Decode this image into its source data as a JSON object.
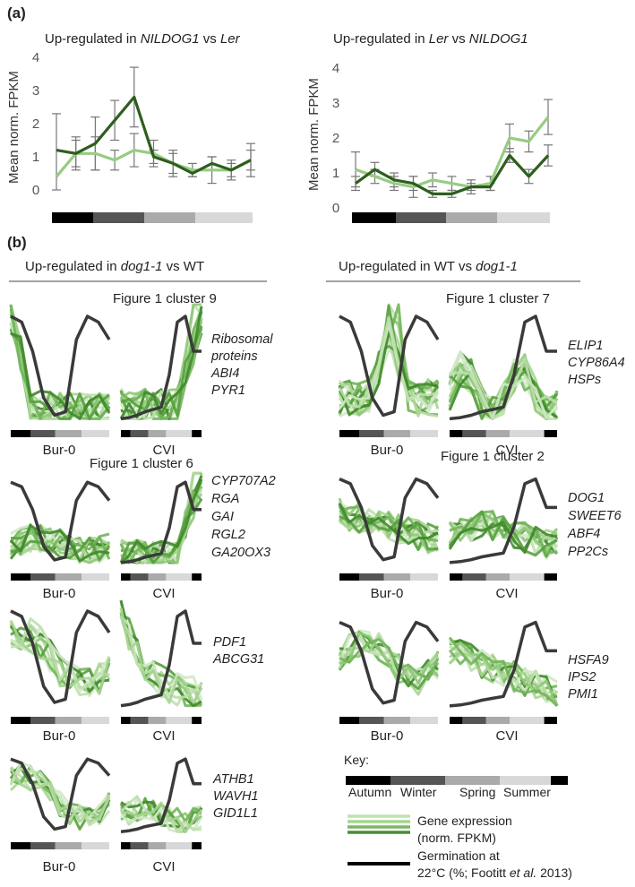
{
  "panel_a": {
    "letter": "(a)",
    "left_title": {
      "prefix": "Up-regulated in ",
      "italic1": "NILDOG1",
      "mid": " vs ",
      "italic2": "Ler"
    },
    "right_title": {
      "prefix": "Up-regulated in ",
      "italic1": "Ler",
      "mid": " vs ",
      "italic2": "NILDOG1"
    },
    "y_label": "Mean norm. FPKM"
  },
  "panel_b": {
    "letter": "(b)",
    "left_header": "Up-regulated in dog1-1 vs WT",
    "right_header": "Up-regulated in WT vs dog1-1",
    "site_labels": {
      "bur": "Bur-0",
      "cvi": "CVI"
    },
    "clusters": [
      {
        "label": "Figure 1 cluster 9",
        "genes": [
          "Ribosomal",
          "proteins",
          "ABI4",
          "PYR1"
        ]
      },
      {
        "label": "Figure 1 cluster 7",
        "genes": [
          "ELIP1",
          "CYP86A4",
          "HSPs"
        ]
      },
      {
        "label": "Figure 1 cluster 6",
        "genes": [
          "CYP707A2",
          "RGA",
          "GAI",
          "RGL2",
          "GA20OX3"
        ]
      },
      {
        "label": "Figure 1 cluster 2",
        "genes": [
          "DOG1",
          "SWEET6",
          "ABF4",
          "PP2Cs"
        ]
      },
      {
        "label": "",
        "genes": [
          "PDF1",
          "ABCG31"
        ]
      },
      {
        "label": "",
        "genes": [
          "HSFA9",
          "IPS2",
          "PMI1"
        ]
      },
      {
        "label": "",
        "genes": [
          "ATHB1",
          "WAVH1",
          "GID1L1"
        ]
      }
    ]
  },
  "key": {
    "title": "Key:",
    "seasons": [
      "Autumn",
      "Winter",
      "Spring",
      "Summer"
    ],
    "expression_line1": "Gene expression",
    "expression_line2": "(norm. FPKM)",
    "germination_line1": "Germination at",
    "germination_line2": "22°C (%; Footitt et al. 2013)"
  },
  "colors": {
    "dark_green": "#2e5e1e",
    "light_green": "#98cc82",
    "germination": "#3a3a3a",
    "season_bar": [
      "#000000",
      "#555555",
      "#aaaaaa",
      "#d8d8d8"
    ]
  },
  "chart_data": [
    {
      "type": "line",
      "title": "Up-regulated in NILDOG1 vs Ler",
      "ylabel": "Mean norm. FPKM",
      "ylim": [
        0,
        4
      ],
      "yticks": [
        0,
        1,
        2,
        3,
        4
      ],
      "x": [
        1,
        2,
        3,
        4,
        5,
        6,
        7,
        8,
        9,
        10,
        11
      ],
      "series": [
        {
          "name": "NILDOG1",
          "color": "#2e5e1e",
          "values": [
            1.2,
            1.1,
            1.4,
            2.1,
            2.8,
            1.0,
            0.8,
            0.5,
            0.8,
            0.6,
            0.9
          ],
          "errors": [
            0.0,
            0.5,
            0.8,
            0.6,
            0.9,
            0.2,
            0.3,
            0.1,
            0.2,
            0.2,
            0.3
          ]
        },
        {
          "name": "Ler",
          "color": "#98cc82",
          "values": [
            0.4,
            1.1,
            1.1,
            0.9,
            1.2,
            1.1,
            0.8,
            0.6,
            0.6,
            0.6,
            0.9
          ],
          "errors": [
            1.9,
            0.4,
            0.5,
            0.3,
            0.5,
            0.4,
            0.4,
            0.2,
            0.4,
            0.3,
            0.5
          ]
        }
      ]
    },
    {
      "type": "line",
      "title": "Up-regulated in Ler vs NILDOG1",
      "ylabel": "Mean norm. FPKM",
      "ylim": [
        0,
        4
      ],
      "yticks": [
        0,
        1,
        2,
        3,
        4
      ],
      "x": [
        1,
        2,
        3,
        4,
        5,
        6,
        7,
        8,
        9,
        10,
        11
      ],
      "series": [
        {
          "name": "NILDOG1",
          "color": "#2e5e1e",
          "values": [
            0.7,
            1.1,
            0.8,
            0.7,
            0.4,
            0.4,
            0.6,
            0.6,
            1.5,
            0.9,
            1.5
          ],
          "errors": [
            0.2,
            0.2,
            0.2,
            0.2,
            0.1,
            0.1,
            0.1,
            0.1,
            0.2,
            0.2,
            0.3
          ]
        },
        {
          "name": "Ler",
          "color": "#98cc82",
          "values": [
            1.1,
            0.9,
            0.7,
            0.6,
            0.8,
            0.7,
            0.6,
            0.7,
            2.0,
            1.9,
            2.6
          ],
          "errors": [
            0.5,
            0.2,
            0.2,
            0.3,
            0.2,
            0.2,
            0.2,
            0.2,
            0.4,
            0.3,
            0.5
          ]
        }
      ]
    },
    {
      "type": "line",
      "title": "Germination at 22°C (%) — Bur-0 and CVI",
      "ylim": [
        0,
        100
      ],
      "series": [
        {
          "name": "Bur-0 germination",
          "color": "#3a3a3a",
          "values": [
            90,
            85,
            60,
            20,
            5,
            8,
            70,
            90,
            85,
            70
          ]
        },
        {
          "name": "CVI germination",
          "color": "#3a3a3a",
          "values": [
            2,
            3,
            5,
            8,
            10,
            12,
            40,
            85,
            90,
            60,
            60
          ]
        }
      ]
    }
  ]
}
